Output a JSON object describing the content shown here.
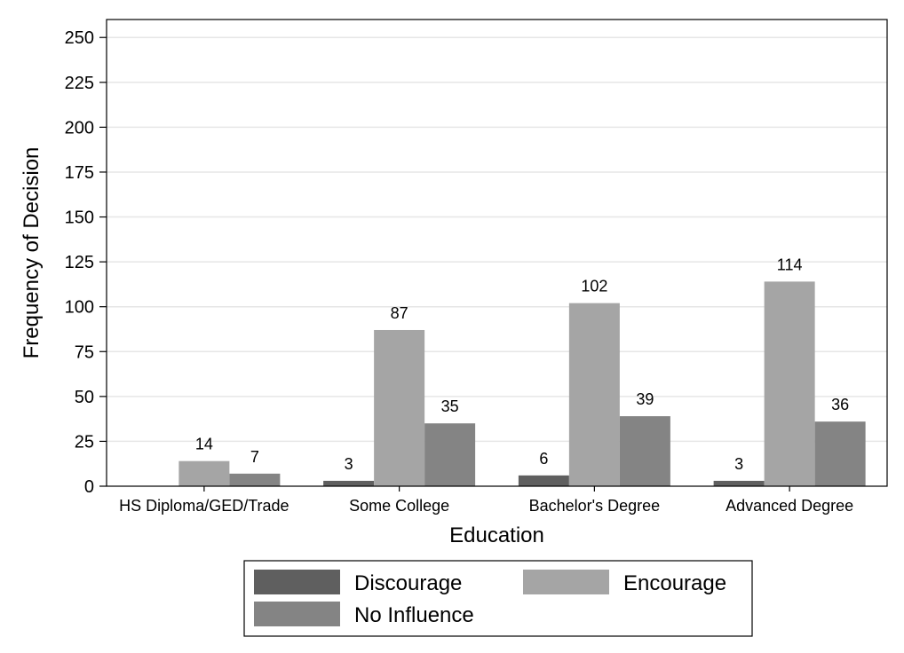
{
  "chart_data": {
    "type": "bar",
    "title": "",
    "xlabel": "Education",
    "ylabel": "Frequency of Decision",
    "ylim": [
      0,
      260
    ],
    "yticks": [
      0,
      25,
      50,
      75,
      100,
      125,
      150,
      175,
      200,
      225,
      250
    ],
    "grid": true,
    "legend_position": "bottom",
    "categories": [
      "HS Diploma/GED/Trade",
      "Some College",
      "Bachelor's Degree",
      "Advanced Degree"
    ],
    "series": [
      {
        "name": "Discourage",
        "color": "#5f5f5f",
        "values": [
          null,
          3,
          6,
          3
        ],
        "labels": [
          "",
          "3",
          "6",
          "3"
        ]
      },
      {
        "name": "Encourage",
        "color": "#a5a5a5",
        "values": [
          14,
          87,
          102,
          114
        ],
        "labels": [
          "14",
          "87",
          "102",
          "114"
        ]
      },
      {
        "name": "No Influence",
        "color": "#848484",
        "values": [
          7,
          35,
          39,
          36
        ],
        "labels": [
          "7",
          "35",
          "39",
          "36"
        ]
      }
    ]
  }
}
